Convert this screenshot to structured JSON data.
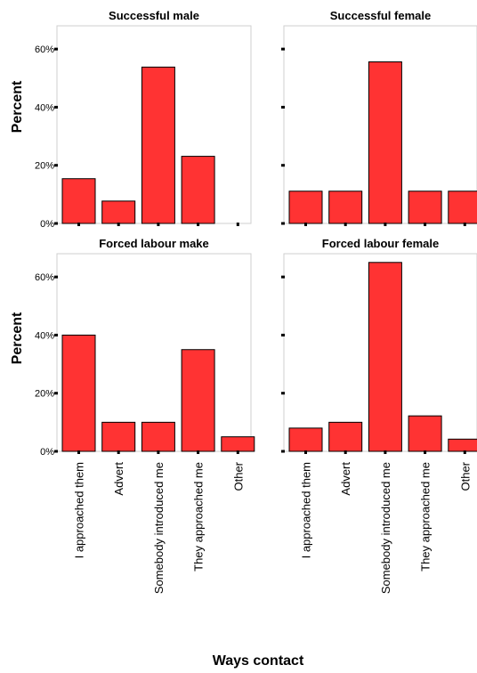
{
  "figure": {
    "ylabel": "Percent",
    "xlabel": "Ways contact",
    "bar_color": "#ff3333",
    "y_ticks": [
      0,
      20,
      40,
      60
    ],
    "y_tick_labels": [
      "0%",
      "20%",
      "40%",
      "60%"
    ]
  },
  "chart_data": [
    {
      "type": "bar",
      "title": "Successful male",
      "categories": [
        "I approached them",
        "Advert",
        "Somebody introduced me",
        "They approached me",
        "Other"
      ],
      "values": [
        15.4,
        7.7,
        53.8,
        23.1,
        0
      ],
      "ylim": [
        0,
        68
      ],
      "ylabel": "Percent",
      "xlabel": "Ways contact"
    },
    {
      "type": "bar",
      "title": "Successful female",
      "categories": [
        "I approached them",
        "Advert",
        "Somebody introduced me",
        "They approached me",
        "Other"
      ],
      "values": [
        11.1,
        11.1,
        55.6,
        11.1,
        11.1
      ],
      "ylim": [
        0,
        68
      ],
      "ylabel": "Percent",
      "xlabel": "Ways contact"
    },
    {
      "type": "bar",
      "title": "Forced labour make",
      "categories": [
        "I approached them",
        "Advert",
        "Somebody introduced me",
        "They approached me",
        "Other"
      ],
      "values": [
        40,
        10,
        10,
        35,
        5
      ],
      "ylim": [
        0,
        68
      ],
      "ylabel": "Percent",
      "xlabel": "Ways contact"
    },
    {
      "type": "bar",
      "title": "Forced labour female",
      "categories": [
        "I approached them",
        "Advert",
        "Somebody introduced me",
        "They approached me",
        "Other"
      ],
      "values": [
        8,
        10,
        65,
        12.2,
        4.2
      ],
      "ylim": [
        0,
        68
      ],
      "ylabel": "Percent",
      "xlabel": "Ways contact"
    }
  ]
}
